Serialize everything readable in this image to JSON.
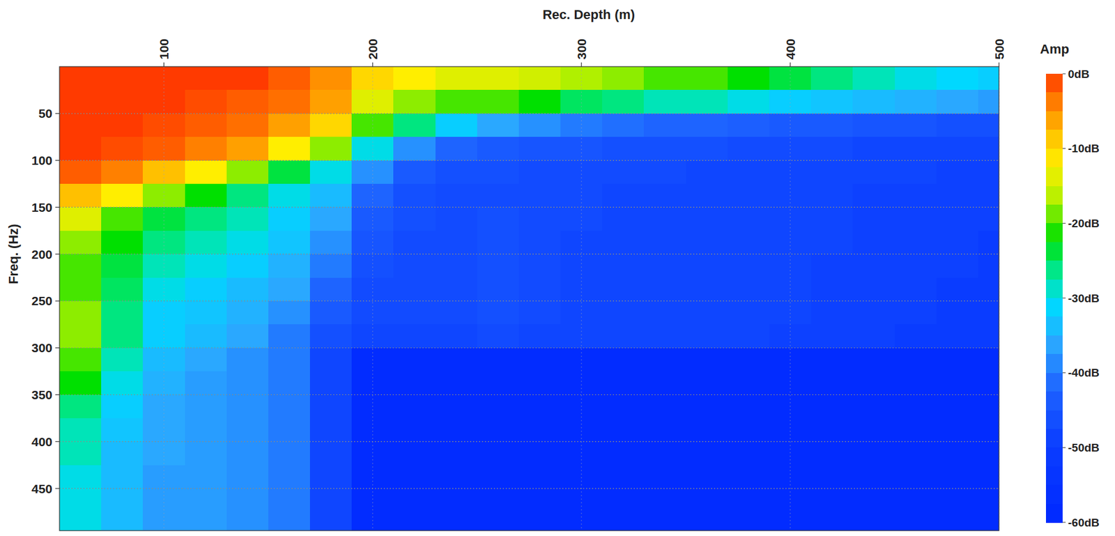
{
  "chart_data": {
    "type": "heatmap",
    "x_label": "Rec. Depth (m)",
    "y_label": "Freq. (Hz)",
    "x": [
      60,
      80,
      100,
      120,
      140,
      160,
      180,
      200,
      220,
      240,
      260,
      280,
      300,
      320,
      340,
      360,
      380,
      400,
      420,
      440,
      460,
      480,
      500
    ],
    "y": [
      12.5,
      37.5,
      62.5,
      87.5,
      112.5,
      137.5,
      162.5,
      187.5,
      212.5,
      237.5,
      262.5,
      287.5,
      312.5,
      337.5,
      362.5,
      387.5,
      412.5,
      437.5,
      462.5,
      487.5
    ],
    "z": [
      [
        0,
        0,
        0,
        0,
        0,
        -2,
        -5,
        -10,
        -12,
        -14,
        -14,
        -15,
        -17,
        -18,
        -20,
        -20,
        -22,
        -24,
        -26,
        -28,
        -30,
        -31,
        -32
      ],
      [
        0,
        0,
        0,
        -1,
        -2,
        -3,
        -6,
        -14,
        -18,
        -20,
        -20,
        -22,
        -25,
        -26,
        -28,
        -28,
        -30,
        -32,
        -33,
        -34,
        -35,
        -36,
        -37
      ],
      [
        0,
        0,
        -1,
        -2,
        -3,
        -6,
        -10,
        -20,
        -26,
        -32,
        -36,
        -38,
        -40,
        -41,
        -42,
        -42,
        -43,
        -44,
        -44,
        -45,
        -45,
        -46,
        -46
      ],
      [
        0,
        -1,
        -2,
        -4,
        -6,
        -12,
        -18,
        -30,
        -38,
        -42,
        -44,
        -45,
        -45,
        -46,
        -46,
        -46,
        -47,
        -47,
        -47,
        -48,
        -48,
        -48,
        -48
      ],
      [
        -2,
        -4,
        -8,
        -12,
        -18,
        -24,
        -30,
        -38,
        -44,
        -46,
        -46,
        -47,
        -47,
        -47,
        -47,
        -48,
        -48,
        -48,
        -48,
        -48,
        -48,
        -49,
        -49
      ],
      [
        -8,
        -12,
        -18,
        -22,
        -26,
        -30,
        -34,
        -42,
        -46,
        -47,
        -47,
        -47,
        -47,
        -48,
        -48,
        -48,
        -48,
        -48,
        -48,
        -49,
        -49,
        -49,
        -49
      ],
      [
        -14,
        -20,
        -24,
        -26,
        -28,
        -32,
        -36,
        -44,
        -46,
        -47,
        -46,
        -47,
        -47,
        -48,
        -48,
        -48,
        -48,
        -48,
        -48,
        -49,
        -49,
        -49,
        -49
      ],
      [
        -18,
        -22,
        -26,
        -28,
        -30,
        -33,
        -38,
        -45,
        -47,
        -47,
        -46,
        -47,
        -48,
        -48,
        -48,
        -48,
        -48,
        -48,
        -48,
        -49,
        -49,
        -49,
        -50
      ],
      [
        -20,
        -24,
        -28,
        -30,
        -32,
        -35,
        -40,
        -46,
        -47,
        -47,
        -46,
        -47,
        -48,
        -48,
        -48,
        -48,
        -48,
        -48,
        -49,
        -49,
        -49,
        -49,
        -50
      ],
      [
        -20,
        -25,
        -30,
        -32,
        -34,
        -36,
        -42,
        -47,
        -47,
        -47,
        -46,
        -47,
        -48,
        -48,
        -48,
        -48,
        -48,
        -48,
        -49,
        -49,
        -49,
        -50,
        -50
      ],
      [
        -18,
        -26,
        -32,
        -33,
        -35,
        -38,
        -44,
        -47,
        -47,
        -47,
        -46,
        -47,
        -48,
        -48,
        -48,
        -48,
        -48,
        -48,
        -49,
        -49,
        -49,
        -50,
        -50
      ],
      [
        -18,
        -26,
        -32,
        -34,
        -36,
        -40,
        -46,
        -48,
        -48,
        -48,
        -47,
        -48,
        -48,
        -48,
        -48,
        -48,
        -48,
        -49,
        -49,
        -49,
        -50,
        -50,
        -50
      ],
      [
        -20,
        -28,
        -34,
        -36,
        -38,
        -40,
        -48,
        -58,
        -58,
        -58,
        -58,
        -58,
        -58,
        -58,
        -58,
        -58,
        -58,
        -58,
        -58,
        -58,
        -58,
        -58,
        -58
      ],
      [
        -22,
        -30,
        -35,
        -37,
        -38,
        -40,
        -48,
        -58,
        -58,
        -58,
        -58,
        -58,
        -58,
        -58,
        -58,
        -58,
        -58,
        -58,
        -58,
        -58,
        -58,
        -58,
        -58
      ],
      [
        -26,
        -32,
        -36,
        -37,
        -38,
        -40,
        -48,
        -58,
        -58,
        -58,
        -58,
        -58,
        -58,
        -58,
        -58,
        -58,
        -58,
        -58,
        -58,
        -58,
        -58,
        -58,
        -58
      ],
      [
        -28,
        -33,
        -36,
        -37,
        -38,
        -40,
        -48,
        -58,
        -58,
        -58,
        -58,
        -58,
        -58,
        -58,
        -58,
        -58,
        -58,
        -58,
        -58,
        -58,
        -58,
        -58,
        -58
      ],
      [
        -28,
        -34,
        -36,
        -37,
        -38,
        -40,
        -48,
        -58,
        -58,
        -58,
        -58,
        -58,
        -58,
        -58,
        -58,
        -58,
        -58,
        -58,
        -58,
        -58,
        -58,
        -58,
        -58
      ],
      [
        -30,
        -34,
        -37,
        -37,
        -38,
        -40,
        -48,
        -58,
        -58,
        -58,
        -58,
        -58,
        -58,
        -58,
        -58,
        -58,
        -58,
        -58,
        -58,
        -58,
        -58,
        -58,
        -58
      ],
      [
        -30,
        -34,
        -37,
        -37,
        -38,
        -40,
        -48,
        -58,
        -58,
        -58,
        -58,
        -58,
        -58,
        -58,
        -58,
        -58,
        -58,
        -58,
        -58,
        -58,
        -58,
        -58,
        -58
      ],
      [
        -30,
        -34,
        -37,
        -37,
        -38,
        -40,
        -48,
        -58,
        -58,
        -58,
        -58,
        -58,
        -58,
        -58,
        -58,
        -58,
        -58,
        -58,
        -58,
        -58,
        -58,
        -58,
        -58
      ]
    ],
    "xlim": [
      50,
      500
    ],
    "ylim": [
      0,
      495
    ],
    "xticks": [
      100,
      200,
      300,
      400,
      500
    ],
    "yticks": [
      50,
      100,
      150,
      200,
      250,
      300,
      350,
      400,
      450
    ],
    "grid": true,
    "colorbar": {
      "label": "Amp",
      "range": [
        -60,
        0
      ],
      "ticks": [
        {
          "value": 0,
          "label": "0dB"
        },
        {
          "value": -10,
          "label": "-10dB"
        },
        {
          "value": -20,
          "label": "-20dB"
        },
        {
          "value": -30,
          "label": "-30dB"
        },
        {
          "value": -40,
          "label": "-40dB"
        },
        {
          "value": -50,
          "label": "-50dB"
        },
        {
          "value": -60,
          "label": "-60dB"
        }
      ]
    }
  }
}
